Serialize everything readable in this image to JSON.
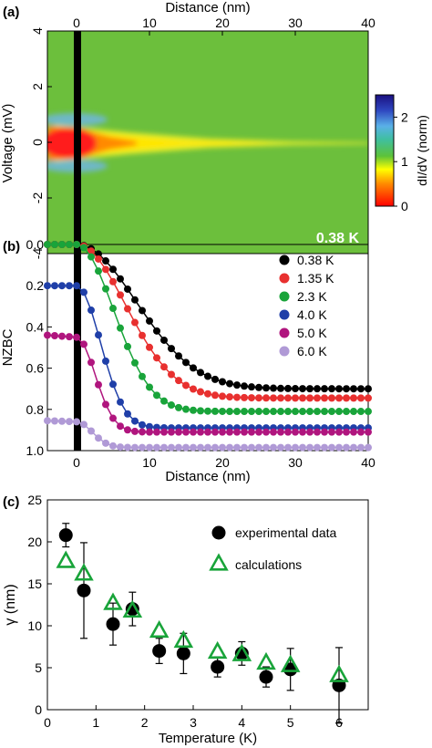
{
  "panels": [
    {
      "id": "a",
      "panel_label": "(a)",
      "chart_data": {
        "type": "heatmap",
        "xlabel": "Distance (nm)",
        "ylabel": "Voltage (mV)",
        "xlim": [
          -4,
          40
        ],
        "ylim": [
          4,
          -4
        ],
        "x_ticks": [
          "0",
          "10",
          "20",
          "30",
          "40"
        ],
        "y_ticks": [
          "4",
          "2",
          "0",
          "-2",
          "-4"
        ],
        "colorbar": {
          "label": "dI/dV (norm)",
          "range": [
            0,
            2.5
          ],
          "ticks": [
            "0",
            "1",
            "2"
          ]
        },
        "temperature_label": "0.38 K",
        "vortex_center_x": 0,
        "colors": {
          "background": "#6cbf3c",
          "core": "#ff1a1a",
          "edge": "#ffe600",
          "peak": "#6fb7e8",
          "center_line": "#000000"
        }
      }
    },
    {
      "id": "b",
      "panel_label": "(b)",
      "chart_data": {
        "type": "line",
        "xlabel": "Distance (nm)",
        "ylabel": "NZBC",
        "xlim": [
          -4,
          40
        ],
        "ylim": [
          0.0,
          1.0
        ],
        "y_inverted": true,
        "x_ticks": [
          "0",
          "10",
          "20",
          "30",
          "40"
        ],
        "y_ticks": [
          "0.0",
          "0.2",
          "0.4",
          "0.6",
          "0.8",
          "1.0"
        ],
        "legend_position": "top-right",
        "series": [
          {
            "name": "0.38 K",
            "color": "#000000",
            "base": 0.0,
            "plateau": 0.0,
            "end": 0.7,
            "lambda": 11.5
          },
          {
            "name": "1.35 K",
            "color": "#e8302f",
            "base": 0.0,
            "plateau": 0.0,
            "end": 0.745,
            "lambda": 9.5
          },
          {
            "name": "2.3 K",
            "color": "#19a43a",
            "base": 0.0,
            "plateau": 0.0,
            "end": 0.81,
            "lambda": 7.2
          },
          {
            "name": "4.0 K",
            "color": "#1f3fa8",
            "base": 0.2,
            "plateau": 0.2,
            "end": 0.89,
            "lambda": 4.6
          },
          {
            "name": "5.0 K",
            "color": "#b0157e",
            "base": 0.44,
            "plateau": 0.45,
            "end": 0.91,
            "lambda": 3.6
          },
          {
            "name": "6.0 K",
            "color": "#b09ad6",
            "base": 0.855,
            "plateau": 0.86,
            "end": 0.985,
            "lambda": 3.0
          }
        ]
      }
    },
    {
      "id": "c",
      "panel_label": "(c)",
      "chart_data": {
        "type": "scatter",
        "xlabel": "Temperature (K)",
        "ylabel": "γ (nm)",
        "xlim": [
          0,
          6.6
        ],
        "ylim": [
          0,
          25
        ],
        "x_ticks": [
          "0",
          "1",
          "2",
          "3",
          "4",
          "5",
          "6"
        ],
        "y_ticks": [
          "0",
          "5",
          "10",
          "15",
          "20",
          "25"
        ],
        "legend_position": "top-right",
        "series": [
          {
            "name": "experimental data",
            "marker": "circle",
            "color": "#000000",
            "points": [
              {
                "x": 0.38,
                "y": 20.8,
                "err": 1.4
              },
              {
                "x": 0.75,
                "y": 14.2,
                "err": 5.7
              },
              {
                "x": 1.35,
                "y": 10.2,
                "err": 2.5
              },
              {
                "x": 1.75,
                "y": 12.0,
                "err": 2.0
              },
              {
                "x": 2.3,
                "y": 7.0,
                "err": 1.5
              },
              {
                "x": 2.8,
                "y": 6.7,
                "err": 2.4
              },
              {
                "x": 3.5,
                "y": 5.1,
                "err": 1.2
              },
              {
                "x": 4.0,
                "y": 6.7,
                "err": 1.4
              },
              {
                "x": 4.5,
                "y": 3.9,
                "err": 1.2
              },
              {
                "x": 5.0,
                "y": 4.8,
                "err": 2.5
              },
              {
                "x": 6.0,
                "y": 2.9,
                "err": 4.5
              }
            ]
          },
          {
            "name": "calculations",
            "marker": "triangle",
            "color": "#19a43a",
            "points": [
              {
                "x": 0.38,
                "y": 17.7
              },
              {
                "x": 0.75,
                "y": 16.2
              },
              {
                "x": 1.35,
                "y": 12.7
              },
              {
                "x": 1.75,
                "y": 11.8
              },
              {
                "x": 2.3,
                "y": 9.4
              },
              {
                "x": 2.8,
                "y": 8.2
              },
              {
                "x": 3.5,
                "y": 6.9
              },
              {
                "x": 4.0,
                "y": 6.6
              },
              {
                "x": 4.5,
                "y": 5.6
              },
              {
                "x": 5.0,
                "y": 5.3
              },
              {
                "x": 6.0,
                "y": 4.1
              }
            ]
          }
        ]
      }
    }
  ]
}
